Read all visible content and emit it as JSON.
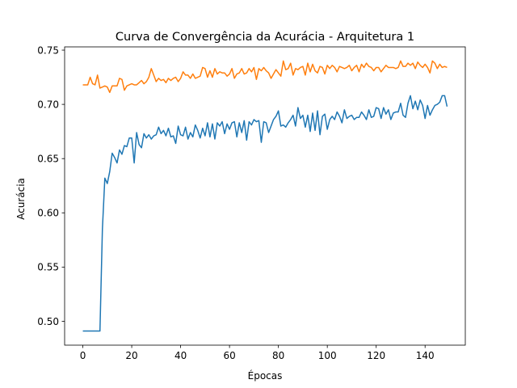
{
  "chart_data": {
    "type": "line",
    "title": "Curva de Convergência da Acurácia - Arquitetura 1",
    "xlabel": "Épocas",
    "ylabel": "Acurácia",
    "xlim": [
      -7.45,
      156.45
    ],
    "ylim": [
      0.478,
      0.753
    ],
    "xticks": [
      0,
      20,
      40,
      60,
      80,
      100,
      120,
      140
    ],
    "yticks": [
      0.5,
      0.55,
      0.6,
      0.65,
      0.7,
      0.75
    ],
    "ytick_labels": [
      "0.50",
      "0.55",
      "0.60",
      "0.65",
      "0.70",
      "0.75"
    ],
    "grid": false,
    "legend": "none",
    "series": [
      {
        "color": "#1f77b4",
        "x": [
          0,
          1,
          2,
          3,
          4,
          5,
          6,
          7,
          8,
          9,
          10,
          11,
          12,
          13,
          14,
          15,
          16,
          17,
          18,
          19,
          20,
          21,
          22,
          23,
          24,
          25,
          26,
          27,
          28,
          29,
          30,
          31,
          32,
          33,
          34,
          35,
          36,
          37,
          38,
          39,
          40,
          41,
          42,
          43,
          44,
          45,
          46,
          47,
          48,
          49,
          50,
          51,
          52,
          53,
          54,
          55,
          56,
          57,
          58,
          59,
          60,
          61,
          62,
          63,
          64,
          65,
          66,
          67,
          68,
          69,
          70,
          71,
          72,
          73,
          74,
          75,
          76,
          77,
          78,
          79,
          80,
          81,
          82,
          83,
          84,
          85,
          86,
          87,
          88,
          89,
          90,
          91,
          92,
          93,
          94,
          95,
          96,
          97,
          98,
          99,
          100,
          101,
          102,
          103,
          104,
          105,
          106,
          107,
          108,
          109,
          110,
          111,
          112,
          113,
          114,
          115,
          116,
          117,
          118,
          119,
          120,
          121,
          122,
          123,
          124,
          125,
          126,
          127,
          128,
          129,
          130,
          131,
          132,
          133,
          134,
          135,
          136,
          137,
          138,
          139,
          140,
          141,
          142,
          143,
          144,
          145,
          146,
          147,
          148,
          149
        ],
        "values": [
          0.491,
          0.491,
          0.491,
          0.491,
          0.491,
          0.491,
          0.491,
          0.491,
          0.585,
          0.632,
          0.627,
          0.638,
          0.655,
          0.651,
          0.646,
          0.658,
          0.654,
          0.662,
          0.661,
          0.669,
          0.669,
          0.646,
          0.674,
          0.663,
          0.66,
          0.673,
          0.669,
          0.672,
          0.668,
          0.671,
          0.672,
          0.679,
          0.673,
          0.676,
          0.671,
          0.678,
          0.67,
          0.671,
          0.664,
          0.68,
          0.672,
          0.671,
          0.679,
          0.668,
          0.674,
          0.67,
          0.681,
          0.676,
          0.669,
          0.678,
          0.671,
          0.683,
          0.67,
          0.682,
          0.668,
          0.683,
          0.68,
          0.684,
          0.673,
          0.682,
          0.677,
          0.683,
          0.684,
          0.67,
          0.683,
          0.674,
          0.685,
          0.667,
          0.684,
          0.681,
          0.686,
          0.684,
          0.685,
          0.665,
          0.684,
          0.683,
          0.674,
          0.68,
          0.686,
          0.689,
          0.694,
          0.68,
          0.681,
          0.679,
          0.683,
          0.686,
          0.69,
          0.68,
          0.697,
          0.687,
          0.69,
          0.679,
          0.69,
          0.675,
          0.692,
          0.676,
          0.694,
          0.672,
          0.689,
          0.691,
          0.677,
          0.686,
          0.689,
          0.686,
          0.693,
          0.689,
          0.683,
          0.695,
          0.687,
          0.689,
          0.69,
          0.686,
          0.688,
          0.688,
          0.693,
          0.69,
          0.686,
          0.695,
          0.688,
          0.689,
          0.697,
          0.696,
          0.687,
          0.697,
          0.691,
          0.695,
          0.686,
          0.692,
          0.693,
          0.693,
          0.701,
          0.69,
          0.688,
          0.701,
          0.708,
          0.696,
          0.703,
          0.695,
          0.704,
          0.699,
          0.687,
          0.699,
          0.69,
          0.695,
          0.699,
          0.7,
          0.702,
          0.708,
          0.708,
          0.698
        ]
      },
      {
        "color": "#ff7f0e",
        "x": [
          0,
          1,
          2,
          3,
          4,
          5,
          6,
          7,
          8,
          9,
          10,
          11,
          12,
          13,
          14,
          15,
          16,
          17,
          18,
          19,
          20,
          21,
          22,
          23,
          24,
          25,
          26,
          27,
          28,
          29,
          30,
          31,
          32,
          33,
          34,
          35,
          36,
          37,
          38,
          39,
          40,
          41,
          42,
          43,
          44,
          45,
          46,
          47,
          48,
          49,
          50,
          51,
          52,
          53,
          54,
          55,
          56,
          57,
          58,
          59,
          60,
          61,
          62,
          63,
          64,
          65,
          66,
          67,
          68,
          69,
          70,
          71,
          72,
          73,
          74,
          75,
          76,
          77,
          78,
          79,
          80,
          81,
          82,
          83,
          84,
          85,
          86,
          87,
          88,
          89,
          90,
          91,
          92,
          93,
          94,
          95,
          96,
          97,
          98,
          99,
          100,
          101,
          102,
          103,
          104,
          105,
          106,
          107,
          108,
          109,
          110,
          111,
          112,
          113,
          114,
          115,
          116,
          117,
          118,
          119,
          120,
          121,
          122,
          123,
          124,
          125,
          126,
          127,
          128,
          129,
          130,
          131,
          132,
          133,
          134,
          135,
          136,
          137,
          138,
          139,
          140,
          141,
          142,
          143,
          144,
          145,
          146,
          147,
          148,
          149
        ],
        "values": [
          0.718,
          0.718,
          0.718,
          0.725,
          0.719,
          0.718,
          0.727,
          0.715,
          0.716,
          0.717,
          0.716,
          0.711,
          0.717,
          0.717,
          0.717,
          0.724,
          0.723,
          0.713,
          0.717,
          0.718,
          0.719,
          0.718,
          0.718,
          0.72,
          0.722,
          0.719,
          0.721,
          0.725,
          0.733,
          0.727,
          0.721,
          0.724,
          0.722,
          0.723,
          0.72,
          0.724,
          0.722,
          0.724,
          0.725,
          0.721,
          0.724,
          0.73,
          0.727,
          0.727,
          0.724,
          0.728,
          0.724,
          0.725,
          0.726,
          0.734,
          0.733,
          0.725,
          0.731,
          0.725,
          0.733,
          0.728,
          0.73,
          0.729,
          0.729,
          0.726,
          0.728,
          0.733,
          0.724,
          0.728,
          0.729,
          0.733,
          0.728,
          0.729,
          0.733,
          0.73,
          0.734,
          0.723,
          0.733,
          0.731,
          0.734,
          0.731,
          0.729,
          0.724,
          0.728,
          0.732,
          0.729,
          0.726,
          0.74,
          0.732,
          0.733,
          0.738,
          0.727,
          0.733,
          0.732,
          0.734,
          0.735,
          0.727,
          0.738,
          0.73,
          0.737,
          0.731,
          0.729,
          0.735,
          0.734,
          0.728,
          0.736,
          0.733,
          0.736,
          0.734,
          0.73,
          0.735,
          0.734,
          0.733,
          0.734,
          0.736,
          0.731,
          0.734,
          0.736,
          0.73,
          0.737,
          0.734,
          0.738,
          0.735,
          0.734,
          0.731,
          0.734,
          0.734,
          0.73,
          0.733,
          0.736,
          0.734,
          0.734,
          0.734,
          0.733,
          0.734,
          0.74,
          0.735,
          0.735,
          0.738,
          0.736,
          0.738,
          0.733,
          0.739,
          0.736,
          0.734,
          0.737,
          0.734,
          0.729,
          0.74,
          0.738,
          0.733,
          0.737,
          0.734,
          0.735,
          0.734
        ]
      }
    ]
  }
}
